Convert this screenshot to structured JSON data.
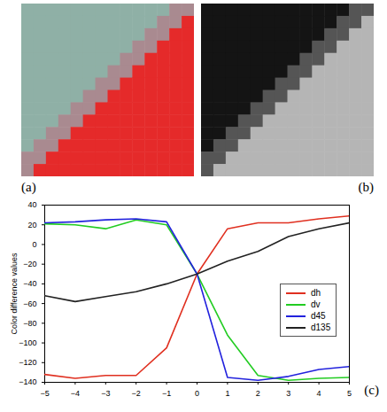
{
  "panels": [
    {
      "panel_label": "(a)"
    },
    {
      "panel_label": "(b)"
    }
  ],
  "chart_data": {
    "type": "line",
    "panel_label": "(c)",
    "ylabel": "Color difference values",
    "x": [
      -5,
      -4,
      -3,
      -2,
      -1,
      0,
      1,
      2,
      3,
      4,
      5
    ],
    "series": [
      {
        "name": "dh",
        "color": "#e03020",
        "values": [
          -132,
          -136,
          -133,
          -133,
          -105,
          -30,
          16,
          22,
          22,
          26,
          29
        ]
      },
      {
        "name": "dv",
        "color": "#22cc22",
        "values": [
          21,
          20,
          16,
          25,
          20,
          -30,
          -92,
          -133,
          -138,
          -136,
          -135
        ]
      },
      {
        "name": "d45",
        "color": "#2222dd",
        "values": [
          22,
          23,
          25,
          26,
          23,
          -30,
          -135,
          -138,
          -134,
          -127,
          -124
        ]
      },
      {
        "name": "d135",
        "color": "#222222",
        "values": [
          -52,
          -58,
          -53,
          -48,
          -40,
          -30,
          -17,
          -7,
          8,
          16,
          22
        ]
      }
    ],
    "xlim": [
      -5,
      5
    ],
    "xticks": [
      -5,
      -4,
      -3,
      -2,
      -1,
      0,
      1,
      2,
      3,
      4,
      5
    ],
    "ylim": [
      -140,
      40
    ],
    "yticks": [
      -140,
      -120,
      -100,
      -80,
      -60,
      -40,
      -20,
      0,
      20,
      40
    ],
    "legend": "right",
    "grid": false
  }
}
